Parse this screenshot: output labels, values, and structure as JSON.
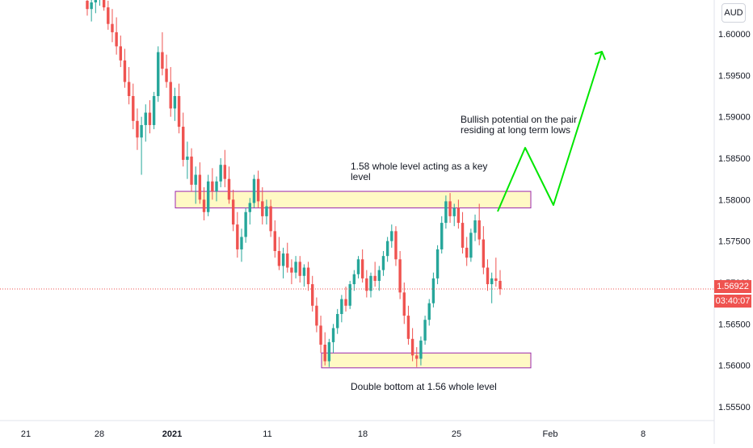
{
  "symbol_currency": "AUD",
  "current_price": "1.56922",
  "countdown": "03:40:07",
  "colors": {
    "up": "#26a69a",
    "down": "#ef5350",
    "zone_fill": "#fff9c4",
    "zone_border": "#9c27b0",
    "arrow": "#00e600",
    "price_line": "#ef5350",
    "grid_text": "#131722"
  },
  "annotations": {
    "key_level": "1.58 whole level acting as a key\nlevel",
    "bullish": "Bullish potential on the pair\nresiding at long term lows",
    "double_bottom": "Double bottom at 1.56 whole level"
  },
  "chart_data": {
    "type": "candlestick",
    "title": "",
    "ylim": [
      1.5515,
      1.6055
    ],
    "y_ticks": [
      "1.60000",
      "1.59500",
      "1.59000",
      "1.58500",
      "1.58000",
      "1.57500",
      "1.57000",
      "1.56500",
      "1.56000",
      "1.55500"
    ],
    "y_tick_values": [
      1.6,
      1.595,
      1.59,
      1.585,
      1.58,
      1.575,
      1.57,
      1.565,
      1.56,
      1.555
    ],
    "x_ticks": [
      "21",
      "28",
      "2021",
      "11",
      "18",
      "25",
      "Feb",
      "8"
    ],
    "zones": [
      {
        "name": "resistance-zone",
        "from": 1.579,
        "to": 1.581
      },
      {
        "name": "support-zone",
        "from": 1.5597,
        "to": 1.5615
      }
    ],
    "current_price": 1.56922,
    "candles": [
      [
        1.604,
        1.6055,
        1.6022,
        1.603
      ],
      [
        1.603,
        1.6048,
        1.6015,
        1.6038
      ],
      [
        1.6038,
        1.6052,
        1.6025,
        1.6044
      ],
      [
        1.6044,
        1.6062,
        1.6034,
        1.605
      ],
      [
        1.605,
        1.6058,
        1.6028,
        1.6032
      ],
      [
        1.6032,
        1.604,
        1.6005,
        1.6012
      ],
      [
        1.6012,
        1.603,
        1.599,
        1.6002
      ],
      [
        1.6002,
        1.602,
        1.5975,
        1.5985
      ],
      [
        1.5985,
        1.5998,
        1.596,
        1.5968
      ],
      [
        1.5968,
        1.5982,
        1.5935,
        1.5942
      ],
      [
        1.5942,
        1.596,
        1.5915,
        1.5925
      ],
      [
        1.5925,
        1.594,
        1.5885,
        1.5895
      ],
      [
        1.5895,
        1.591,
        1.586,
        1.5875
      ],
      [
        1.5875,
        1.59,
        1.583,
        1.589
      ],
      [
        1.589,
        1.5915,
        1.587,
        1.5905
      ],
      [
        1.5905,
        1.592,
        1.588,
        1.589
      ],
      [
        1.589,
        1.593,
        1.5885,
        1.5925
      ],
      [
        1.5925,
        1.5985,
        1.5918,
        1.5978
      ],
      [
        1.5978,
        1.6002,
        1.595,
        1.5958
      ],
      [
        1.5958,
        1.5975,
        1.5935,
        1.5942
      ],
      [
        1.5942,
        1.596,
        1.59,
        1.591
      ],
      [
        1.591,
        1.5935,
        1.5895,
        1.5925
      ],
      [
        1.5925,
        1.594,
        1.588,
        1.5888
      ],
      [
        1.5888,
        1.5905,
        1.584,
        1.5848
      ],
      [
        1.5848,
        1.587,
        1.5825,
        1.5852
      ],
      [
        1.5852,
        1.5862,
        1.581,
        1.5818
      ],
      [
        1.5818,
        1.584,
        1.5795,
        1.583
      ],
      [
        1.583,
        1.5845,
        1.5795,
        1.58
      ],
      [
        1.58,
        1.5815,
        1.5775,
        1.5785
      ],
      [
        1.5785,
        1.583,
        1.578,
        1.5822
      ],
      [
        1.5822,
        1.5838,
        1.58,
        1.581
      ],
      [
        1.581,
        1.5828,
        1.5798,
        1.5822
      ],
      [
        1.5822,
        1.585,
        1.5815,
        1.5842
      ],
      [
        1.5842,
        1.586,
        1.5815,
        1.5825
      ],
      [
        1.5825,
        1.584,
        1.5795,
        1.58
      ],
      [
        1.58,
        1.5812,
        1.5762,
        1.577
      ],
      [
        1.577,
        1.5785,
        1.573,
        1.574
      ],
      [
        1.574,
        1.5765,
        1.5725,
        1.5755
      ],
      [
        1.5755,
        1.579,
        1.5748,
        1.5785
      ],
      [
        1.5785,
        1.5802,
        1.577,
        1.5796
      ],
      [
        1.5796,
        1.583,
        1.579,
        1.5825
      ],
      [
        1.5825,
        1.5835,
        1.579,
        1.5798
      ],
      [
        1.5798,
        1.5815,
        1.577,
        1.578
      ],
      [
        1.578,
        1.58,
        1.577,
        1.5792
      ],
      [
        1.5792,
        1.58,
        1.5755,
        1.5762
      ],
      [
        1.5762,
        1.5775,
        1.573,
        1.5738
      ],
      [
        1.5738,
        1.5755,
        1.5715,
        1.572
      ],
      [
        1.572,
        1.5742,
        1.5705,
        1.5735
      ],
      [
        1.5735,
        1.5748,
        1.5712,
        1.5718
      ],
      [
        1.5718,
        1.5728,
        1.5698,
        1.5712
      ],
      [
        1.5712,
        1.5732,
        1.5705,
        1.5725
      ],
      [
        1.5725,
        1.5732,
        1.57,
        1.5708
      ],
      [
        1.5708,
        1.5722,
        1.5695,
        1.5718
      ],
      [
        1.5718,
        1.5725,
        1.569,
        1.5698
      ],
      [
        1.5698,
        1.5708,
        1.5665,
        1.5672
      ],
      [
        1.5672,
        1.5682,
        1.564,
        1.5648
      ],
      [
        1.5648,
        1.566,
        1.5615,
        1.5625
      ],
      [
        1.5625,
        1.564,
        1.56,
        1.5605
      ],
      [
        1.5605,
        1.5632,
        1.5598,
        1.5628
      ],
      [
        1.5628,
        1.565,
        1.5615,
        1.5645
      ],
      [
        1.5645,
        1.5668,
        1.5638,
        1.5662
      ],
      [
        1.5662,
        1.5685,
        1.5652,
        1.568
      ],
      [
        1.568,
        1.5695,
        1.5665,
        1.5672
      ],
      [
        1.5672,
        1.5702,
        1.5668,
        1.5698
      ],
      [
        1.5698,
        1.5715,
        1.569,
        1.571
      ],
      [
        1.571,
        1.5732,
        1.5705,
        1.5728
      ],
      [
        1.5728,
        1.574,
        1.57,
        1.5705
      ],
      [
        1.5705,
        1.5715,
        1.5682,
        1.569
      ],
      [
        1.569,
        1.5712,
        1.5682,
        1.5708
      ],
      [
        1.5708,
        1.5725,
        1.5695,
        1.5702
      ],
      [
        1.5702,
        1.572,
        1.569,
        1.5715
      ],
      [
        1.5715,
        1.5738,
        1.5708,
        1.5732
      ],
      [
        1.5732,
        1.5755,
        1.5725,
        1.575
      ],
      [
        1.575,
        1.577,
        1.5742,
        1.5762
      ],
      [
        1.5762,
        1.5768,
        1.572,
        1.5728
      ],
      [
        1.5728,
        1.5738,
        1.568,
        1.5688
      ],
      [
        1.5688,
        1.57,
        1.565,
        1.566
      ],
      [
        1.566,
        1.5672,
        1.5625,
        1.5632
      ],
      [
        1.5632,
        1.5645,
        1.5605,
        1.5612
      ],
      [
        1.5612,
        1.5622,
        1.5598,
        1.5608
      ],
      [
        1.5608,
        1.5635,
        1.56,
        1.563
      ],
      [
        1.563,
        1.566,
        1.5625,
        1.5655
      ],
      [
        1.5655,
        1.568,
        1.5648,
        1.5675
      ],
      [
        1.5675,
        1.5712,
        1.567,
        1.5705
      ],
      [
        1.5705,
        1.5745,
        1.5698,
        1.574
      ],
      [
        1.574,
        1.578,
        1.5735,
        1.5772
      ],
      [
        1.5772,
        1.5805,
        1.5765,
        1.5798
      ],
      [
        1.5798,
        1.5808,
        1.5772,
        1.578
      ],
      [
        1.578,
        1.5795,
        1.5768,
        1.579
      ],
      [
        1.579,
        1.58,
        1.5765,
        1.5772
      ],
      [
        1.5772,
        1.5785,
        1.5735,
        1.5742
      ],
      [
        1.5742,
        1.5755,
        1.572,
        1.573
      ],
      [
        1.573,
        1.5765,
        1.5725,
        1.576
      ],
      [
        1.576,
        1.5782,
        1.575,
        1.5775
      ],
      [
        1.5775,
        1.5795,
        1.5745,
        1.5752
      ],
      [
        1.5752,
        1.5768,
        1.571,
        1.5718
      ],
      [
        1.5718,
        1.5728,
        1.569,
        1.5698
      ],
      [
        1.5698,
        1.5712,
        1.5675,
        1.5705
      ],
      [
        1.5705,
        1.573,
        1.5695,
        1.5702
      ],
      [
        1.5702,
        1.5715,
        1.5685,
        1.5692
      ]
    ]
  }
}
